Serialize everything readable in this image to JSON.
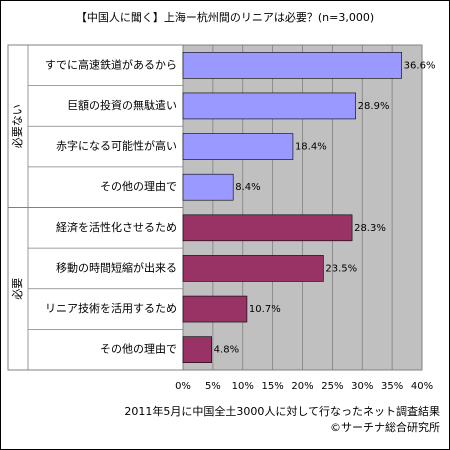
{
  "chart_data": {
    "type": "bar",
    "orientation": "horizontal",
    "title": "【中国人に聞く】上海ー杭州間のリニアは必要？(n=3,000)",
    "groups": [
      {
        "name": "必要ない",
        "color": "#9999ff",
        "categories": [
          "すでに高速鉄道があるから",
          "巨額の投資の無駄遣い",
          "赤字になる可能性が高い",
          "その他の理由で"
        ],
        "values": [
          36.6,
          28.9,
          18.4,
          8.4
        ],
        "value_labels": [
          "36.6%",
          "28.9%",
          "18.4%",
          "8.4%"
        ]
      },
      {
        "name": "必要",
        "color": "#993366",
        "categories": [
          "経済を活性化させるため",
          "移動の時間短縮が出来る",
          "リニア技術を活用するため",
          "その他の理由で"
        ],
        "values": [
          28.3,
          23.5,
          10.7,
          4.8
        ],
        "value_labels": [
          "28.3%",
          "23.5%",
          "10.7%",
          "4.8%"
        ]
      }
    ],
    "xlim": [
      0,
      40
    ],
    "xticks": [
      {
        "value": 0,
        "label": "0%"
      },
      {
        "value": 5,
        "label": "5%"
      },
      {
        "value": 10,
        "label": "10%"
      },
      {
        "value": 15,
        "label": "15%"
      },
      {
        "value": 20,
        "label": "20%"
      },
      {
        "value": 25,
        "label": "25%"
      },
      {
        "value": 30,
        "label": "30%"
      },
      {
        "value": 35,
        "label": "35%"
      },
      {
        "value": 40,
        "label": "40%"
      }
    ],
    "grid": true,
    "notes": [
      "2011年5月に中国全土3000人に対して行なったネット調査結果",
      "©サーチナ総合研究所"
    ]
  }
}
